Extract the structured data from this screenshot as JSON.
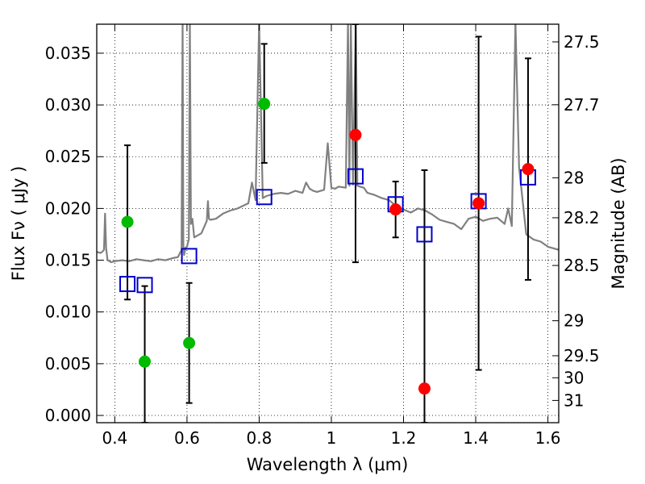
{
  "chart_data": {
    "type": "scatter",
    "xlabel": "Wavelength  λ (μm)",
    "ylabel": "Flux  Fν  ( μJy )",
    "ylabel_right": "Magnitude (AB)",
    "xlim": [
      0.35,
      1.63
    ],
    "ylim": [
      -0.0007,
      0.0378
    ],
    "x_ticks": [
      0.4,
      0.6,
      0.8,
      1.0,
      1.2,
      1.4,
      1.6
    ],
    "x_tick_labels": [
      "0.4",
      "0.6",
      "0.8",
      "1",
      "1.2",
      "1.4",
      "1.6"
    ],
    "y_ticks": [
      0.0,
      0.005,
      0.01,
      0.015,
      0.02,
      0.025,
      0.03,
      0.035
    ],
    "y_tick_labels": [
      "0.000",
      "0.005",
      "0.010",
      "0.015",
      "0.020",
      "0.025",
      "0.030",
      "0.035"
    ],
    "right_ticks": [
      {
        "flux": 0.03609,
        "label": "27.5"
      },
      {
        "flux": 0.03002,
        "label": "27.7"
      },
      {
        "flux": 0.02296,
        "label": "28"
      },
      {
        "flux": 0.0191,
        "label": "28.2"
      },
      {
        "flux": 0.01449,
        "label": "28.5"
      },
      {
        "flux": 0.00915,
        "label": "29"
      },
      {
        "flux": 0.00577,
        "label": "29.5"
      },
      {
        "flux": 0.00364,
        "label": "30"
      },
      {
        "flux": 0.00145,
        "label": "31"
      }
    ],
    "grid": true,
    "colors": {
      "green": "#00bb00",
      "red": "#ff0000",
      "model_box": "#0000cc",
      "spectrum": "#808080",
      "errorbar": "#000000"
    },
    "series": [
      {
        "marker": "circle",
        "color": "#00bb00",
        "points": [
          {
            "x": 0.435,
            "y": 0.0187,
            "ylow": 0.0112,
            "yhigh": 0.0261
          },
          {
            "x": 0.483,
            "y": 0.0052,
            "ylow": -0.0007,
            "yhigh": 0.0125
          },
          {
            "x": 0.606,
            "y": 0.007,
            "ylow": 0.0012,
            "yhigh": 0.0128
          },
          {
            "x": 0.814,
            "y": 0.0301,
            "ylow": 0.0244,
            "yhigh": 0.0359
          }
        ]
      },
      {
        "marker": "circle",
        "color": "#ff0000",
        "points": [
          {
            "x": 1.067,
            "y": 0.0271,
            "ylow": 0.0148,
            "yhigh": 0.0378
          },
          {
            "x": 1.178,
            "y": 0.0199,
            "ylow": 0.0172,
            "yhigh": 0.0226
          },
          {
            "x": 1.258,
            "y": 0.0026,
            "ylow": -0.0007,
            "yhigh": 0.0237
          },
          {
            "x": 1.408,
            "y": 0.0205,
            "ylow": 0.0044,
            "yhigh": 0.0366
          },
          {
            "x": 1.545,
            "y": 0.0238,
            "ylow": 0.0131,
            "yhigh": 0.0345
          }
        ]
      },
      {
        "marker": "open-square",
        "color": "#0000cc",
        "points": [
          {
            "x": 0.435,
            "y": 0.0127
          },
          {
            "x": 0.483,
            "y": 0.0126
          },
          {
            "x": 0.606,
            "y": 0.0154
          },
          {
            "x": 0.814,
            "y": 0.0211
          },
          {
            "x": 1.067,
            "y": 0.0231
          },
          {
            "x": 1.178,
            "y": 0.0204
          },
          {
            "x": 1.258,
            "y": 0.0175
          },
          {
            "x": 1.408,
            "y": 0.0207
          },
          {
            "x": 1.545,
            "y": 0.023
          }
        ]
      },
      {
        "marker": "line",
        "color": "#808080",
        "x": [
          0.35,
          0.36,
          0.365,
          0.37,
          0.373,
          0.376,
          0.38,
          0.39,
          0.4,
          0.42,
          0.44,
          0.46,
          0.48,
          0.5,
          0.52,
          0.54,
          0.56,
          0.575,
          0.585,
          0.588,
          0.59,
          0.592,
          0.596,
          0.6,
          0.605,
          0.608,
          0.611,
          0.615,
          0.62,
          0.64,
          0.655,
          0.658,
          0.661,
          0.665,
          0.68,
          0.7,
          0.72,
          0.74,
          0.77,
          0.78,
          0.79,
          0.8,
          0.81,
          0.82,
          0.84,
          0.86,
          0.88,
          0.9,
          0.92,
          0.93,
          0.94,
          0.95,
          0.96,
          0.98,
          0.99,
          1.0,
          1.01,
          1.02,
          1.04,
          1.046,
          1.05,
          1.054,
          1.06,
          1.068,
          1.072,
          1.08,
          1.09,
          1.1,
          1.12,
          1.14,
          1.16,
          1.18,
          1.2,
          1.22,
          1.24,
          1.26,
          1.28,
          1.3,
          1.32,
          1.34,
          1.36,
          1.38,
          1.4,
          1.42,
          1.44,
          1.46,
          1.48,
          1.49,
          1.5,
          1.51,
          1.52,
          1.54,
          1.56,
          1.58,
          1.6,
          1.63
        ],
        "y": [
          0.0158,
          0.0157,
          0.0158,
          0.016,
          0.0195,
          0.0162,
          0.015,
          0.0148,
          0.0149,
          0.015,
          0.0149,
          0.0151,
          0.015,
          0.0149,
          0.0151,
          0.015,
          0.0152,
          0.0153,
          0.016,
          0.038,
          0.0165,
          0.0155,
          0.0162,
          0.0163,
          0.017,
          0.038,
          0.0185,
          0.019,
          0.0172,
          0.0176,
          0.0188,
          0.0207,
          0.019,
          0.0189,
          0.019,
          0.0195,
          0.0198,
          0.02,
          0.0205,
          0.0225,
          0.0208,
          0.038,
          0.021,
          0.0212,
          0.0214,
          0.0215,
          0.0214,
          0.0217,
          0.0215,
          0.0225,
          0.0219,
          0.0217,
          0.0216,
          0.0218,
          0.0263,
          0.022,
          0.0219,
          0.0221,
          0.022,
          0.038,
          0.0222,
          0.038,
          0.0223,
          0.038,
          0.0222,
          0.0221,
          0.022,
          0.0215,
          0.0213,
          0.021,
          0.0208,
          0.0202,
          0.0199,
          0.0196,
          0.02,
          0.0198,
          0.0194,
          0.0189,
          0.0187,
          0.0185,
          0.018,
          0.019,
          0.0192,
          0.0188,
          0.019,
          0.0191,
          0.0185,
          0.02,
          0.0183,
          0.038,
          0.024,
          0.0175,
          0.017,
          0.0168,
          0.0163,
          0.016
        ]
      }
    ]
  }
}
